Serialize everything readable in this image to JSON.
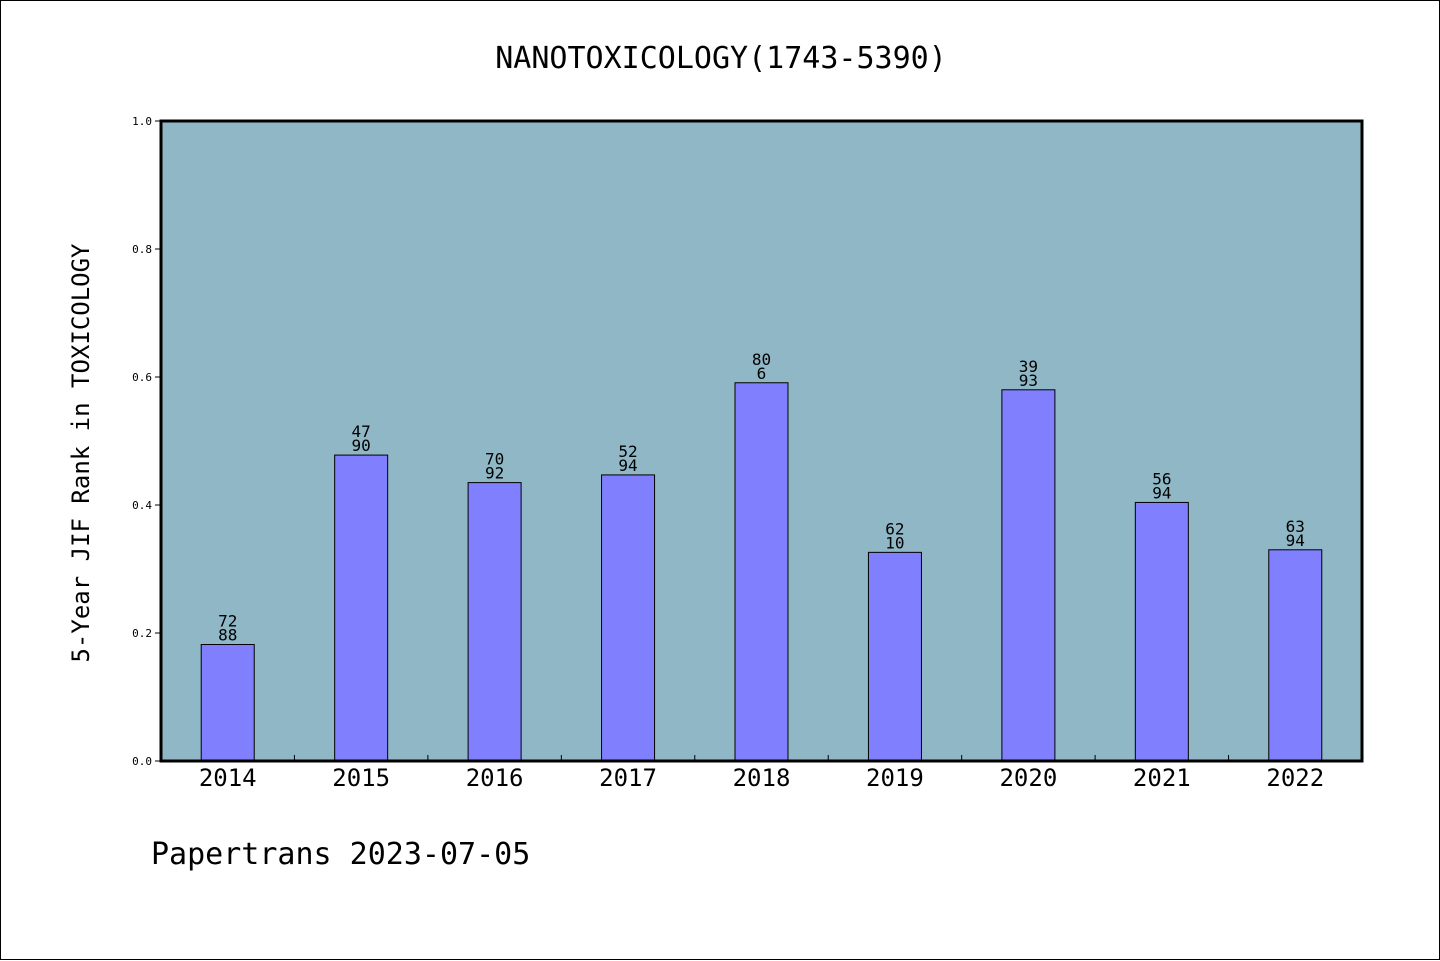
{
  "chart_data": {
    "type": "bar",
    "title": "NANOTOXICOLOGY(1743-5390)",
    "xlabel": "",
    "ylabel": "5-Year JIF Rank in TOXICOLOGY",
    "categories": [
      "2014",
      "2015",
      "2016",
      "2017",
      "2018",
      "2019",
      "2020",
      "2021",
      "2022"
    ],
    "values": [
      0.182,
      0.478,
      0.435,
      0.447,
      0.591,
      0.326,
      0.58,
      0.404,
      0.33
    ],
    "bar_labels": [
      [
        "72",
        "88"
      ],
      [
        "47",
        "90"
      ],
      [
        "70",
        "92"
      ],
      [
        "52",
        "94"
      ],
      [
        "80",
        "6"
      ],
      [
        "62",
        "10"
      ],
      [
        "39",
        "93"
      ],
      [
        "56",
        "94"
      ],
      [
        "63",
        "94"
      ]
    ],
    "ylim": [
      0,
      1.0
    ],
    "yticks": [
      "0.0",
      "0.2",
      "0.4",
      "0.6",
      "0.8",
      "1.0"
    ],
    "grid": false,
    "legend": "none",
    "colors": {
      "plot_background": "#8fb7c5",
      "bar_fill": "#8080ff",
      "bar_edge": "#000000"
    }
  },
  "footer": "Papertrans 2023-07-05"
}
